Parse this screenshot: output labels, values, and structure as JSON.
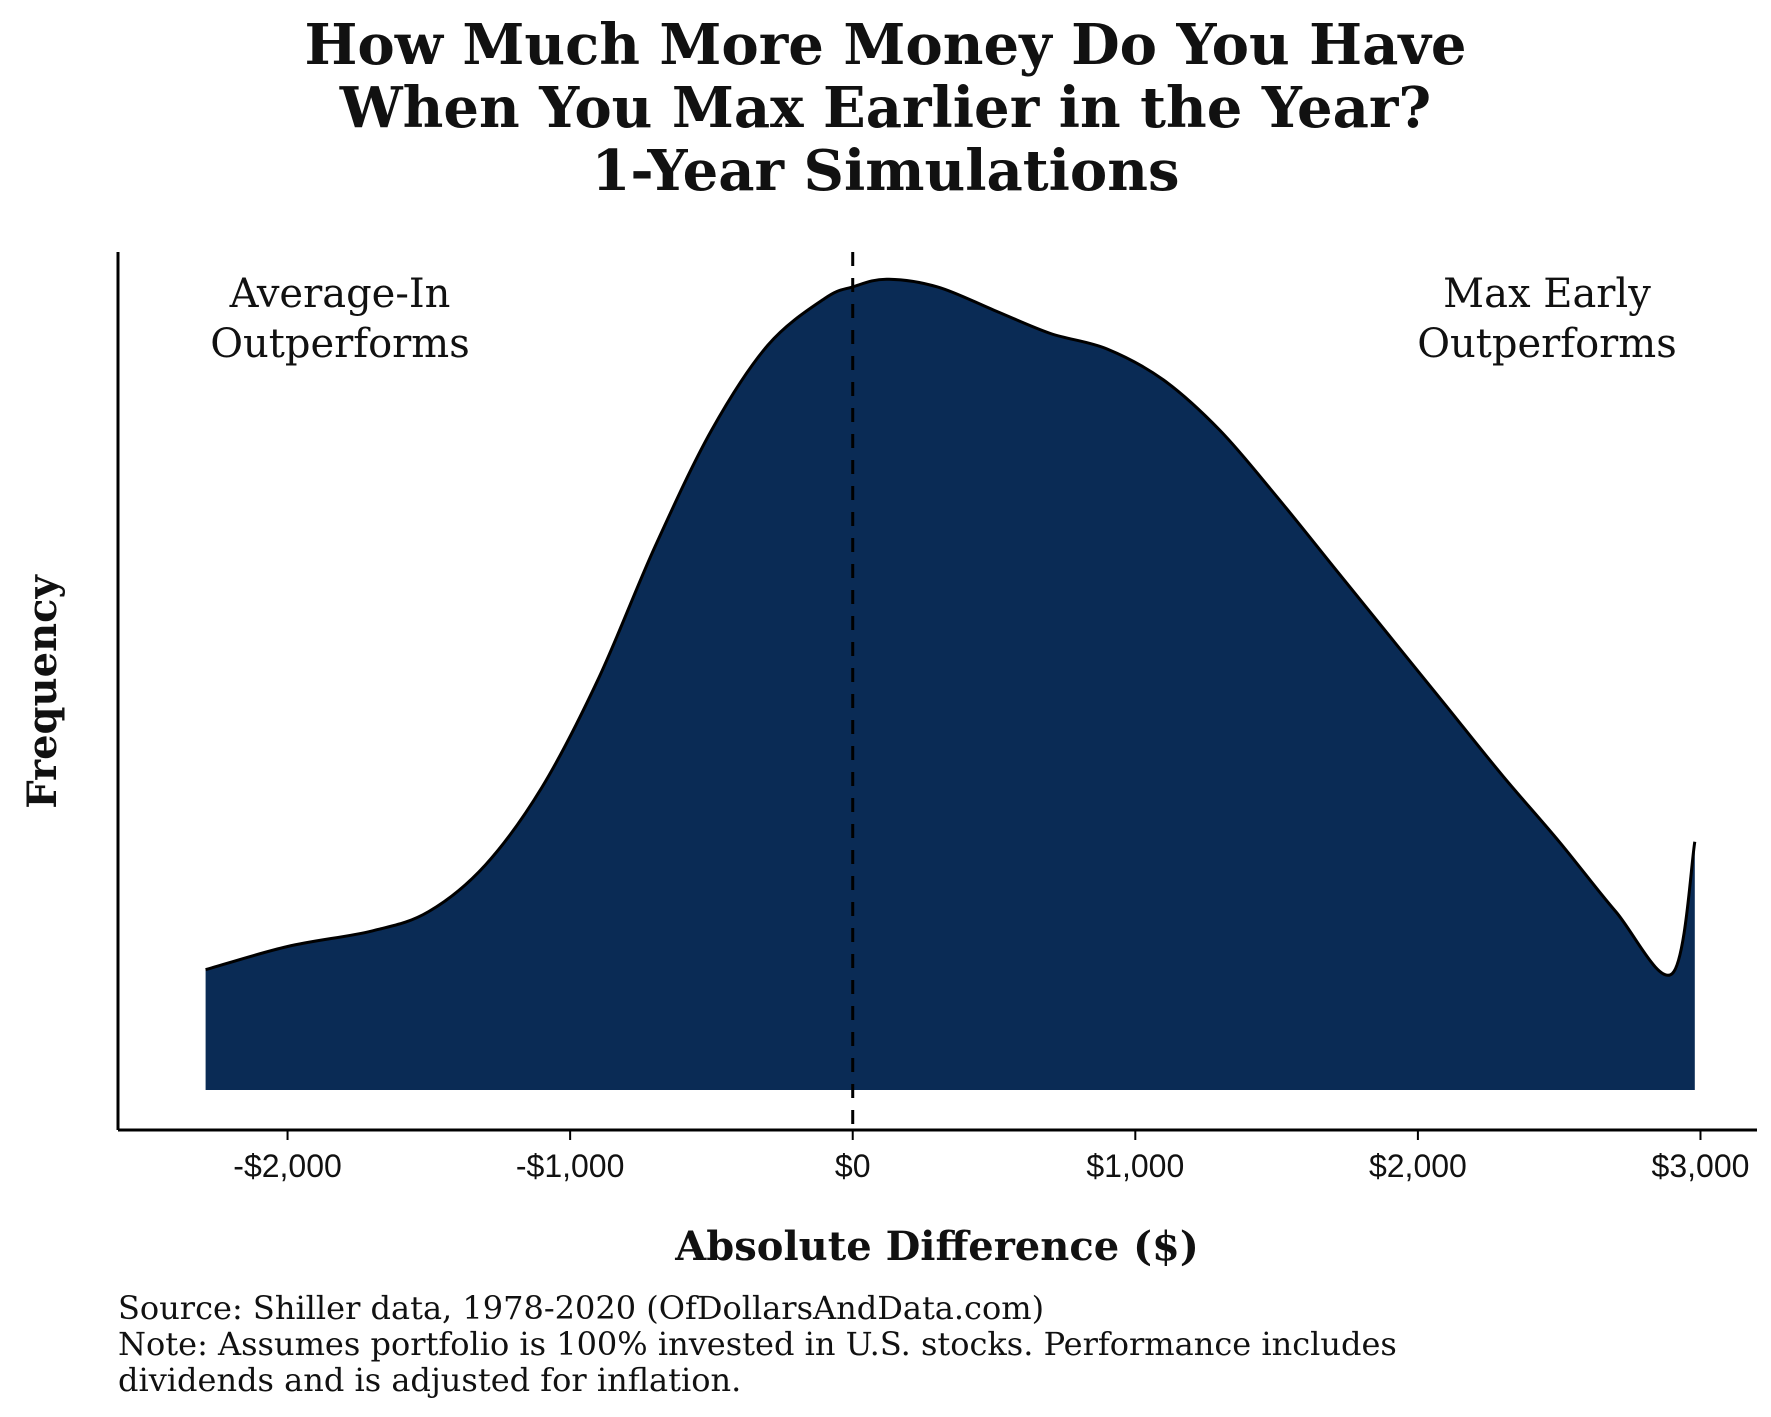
{
  "chart_data": {
    "type": "area",
    "title_lines": [
      "How Much More Money Do You Have",
      "When You Max Earlier in the Year?",
      "1-Year Simulations"
    ],
    "xlabel": "Absolute Difference ($)",
    "ylabel": "Frequency",
    "xlim": [
      -2600,
      3200
    ],
    "ylim": [
      0,
      1.08
    ],
    "x_ticks": [
      -2000,
      -1000,
      0,
      1000,
      2000,
      3000
    ],
    "x_tick_labels": [
      "-$2,000",
      "-$1,000",
      "$0",
      "$1,000",
      "$2,000",
      "$3,000"
    ],
    "y_ticks_shown": false,
    "fill_color": "#0a2b55",
    "reference_line": {
      "x": 0,
      "style": "dashed"
    },
    "annotations": {
      "left": [
        "Average-In",
        "Outperforms"
      ],
      "right": [
        "Max Early",
        "Outperforms"
      ]
    },
    "series": [
      {
        "x": [
          -2290,
          -2000,
          -1700,
          -1500,
          -1300,
          -1100,
          -900,
          -700,
          -500,
          -300,
          -100,
          0,
          120,
          300,
          500,
          700,
          900,
          1100,
          1300,
          1500,
          1700,
          1900,
          2100,
          2300,
          2500,
          2700,
          2900,
          2980
        ],
        "y": [
          0.155,
          0.185,
          0.205,
          0.23,
          0.29,
          0.39,
          0.53,
          0.7,
          0.85,
          0.96,
          1.02,
          1.035,
          1.045,
          1.035,
          1.005,
          0.975,
          0.955,
          0.915,
          0.85,
          0.765,
          0.675,
          0.585,
          0.495,
          0.405,
          0.32,
          0.23,
          0.15,
          0.32
        ]
      }
    ],
    "footnotes": [
      "Source: Shiller data, 1978-2020 (OfDollarsAndData.com)",
      "Note: Assumes portfolio is 100% invested in U.S. stocks. Performance includes",
      "dividends and is adjusted for inflation."
    ]
  }
}
